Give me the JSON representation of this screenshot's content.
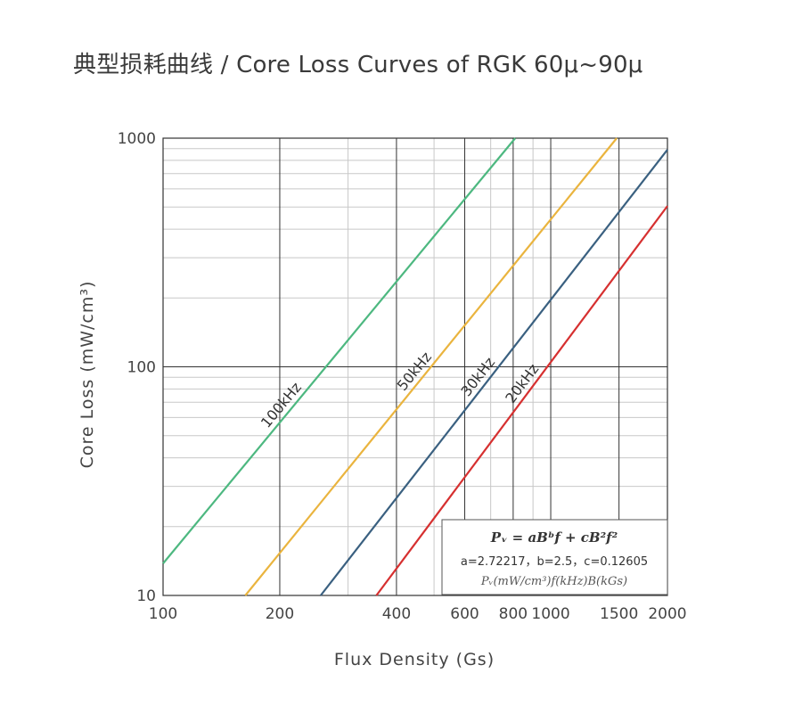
{
  "title": "典型损耗曲线 / Core Loss Curves of RGK 60μ~90μ",
  "chart_data": {
    "type": "line",
    "title": "典型损耗曲线 / Core Loss Curves of RGK 60μ~90μ",
    "xlabel": "Flux Density (Gs)",
    "ylabel": "Core Loss (mW/cm³)",
    "xscale": "log",
    "yscale": "log",
    "xlim": [
      100,
      2000
    ],
    "ylim": [
      10,
      1000
    ],
    "x_ticks": [
      100,
      200,
      400,
      600,
      800,
      1000,
      1500,
      2000
    ],
    "x_tick_labels": [
      "100",
      "200",
      "400",
      "600",
      "800",
      "1000",
      "1500",
      "2000"
    ],
    "y_ticks": [
      10,
      100,
      1000
    ],
    "y_tick_labels": [
      "10",
      "100",
      "1000"
    ],
    "grid": true,
    "x_minor_grid": [
      300,
      500,
      700,
      900
    ],
    "series": [
      {
        "name": "100kHz",
        "color": "#4db880",
        "x": [
          100,
          810
        ],
        "y": [
          13.8,
          1000
        ]
      },
      {
        "name": "50kHz",
        "color": "#eab43e",
        "x": [
          163,
          1480
        ],
        "y": [
          10,
          1000
        ]
      },
      {
        "name": "30kHz",
        "color": "#3a6080",
        "x": [
          255,
          2000
        ],
        "y": [
          10,
          890
        ]
      },
      {
        "name": "20kHz",
        "color": "#d63030",
        "x": [
          355,
          2000
        ],
        "y": [
          10,
          505
        ]
      }
    ],
    "formula": {
      "main": "Pᵥ = aBᵇf + cB²f²",
      "params": "a=2.72217，b=2.5，c=0.12605",
      "units": "Pᵥ(mW/cm³)f(kHz)B(kGs)"
    }
  },
  "colors": {
    "grid_major": "#333333",
    "grid_minor": "#c8c8c8",
    "text": "#444444"
  }
}
